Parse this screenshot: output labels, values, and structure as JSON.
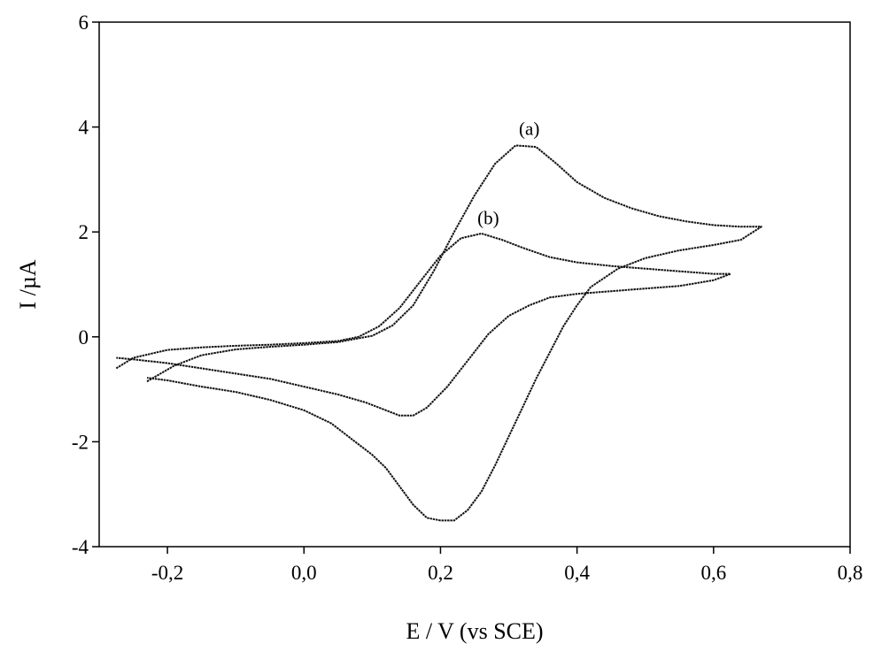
{
  "chart_data": {
    "type": "line",
    "title": "",
    "xlabel": "E / V (vs SCE)",
    "ylabel": "I /µA",
    "xlim": [
      -0.3,
      0.8
    ],
    "ylim": [
      -4,
      6
    ],
    "x_ticks": [
      "-0,2",
      "0,0",
      "0,2",
      "0,4",
      "0,6",
      "0,8"
    ],
    "y_ticks": [
      "-4",
      "-2",
      "0",
      "2",
      "4",
      "6"
    ],
    "x_tick_values": [
      -0.2,
      0.0,
      0.2,
      0.4,
      0.6,
      0.8
    ],
    "y_tick_values": [
      -4,
      -2,
      0,
      2,
      4,
      6
    ],
    "grid": false,
    "legend": "none",
    "series_color": "#111111",
    "series": [
      {
        "name": "(a)",
        "label_at": [
          0.33,
          3.85
        ],
        "x": [
          -0.23,
          -0.19,
          -0.15,
          -0.1,
          -0.05,
          0.0,
          0.05,
          0.1,
          0.13,
          0.16,
          0.19,
          0.22,
          0.25,
          0.28,
          0.31,
          0.34,
          0.37,
          0.4,
          0.44,
          0.48,
          0.52,
          0.56,
          0.6,
          0.64,
          0.67,
          0.64,
          0.6,
          0.55,
          0.5,
          0.46,
          0.42,
          0.4,
          0.38,
          0.36,
          0.34,
          0.32,
          0.3,
          0.28,
          0.26,
          0.24,
          0.22,
          0.2,
          0.18,
          0.16,
          0.14,
          0.12,
          0.1,
          0.07,
          0.04,
          0.0,
          -0.05,
          -0.1,
          -0.15,
          -0.2,
          -0.23
        ],
        "y": [
          -0.85,
          -0.55,
          -0.35,
          -0.24,
          -0.19,
          -0.15,
          -0.1,
          0.02,
          0.22,
          0.6,
          1.25,
          2.0,
          2.7,
          3.3,
          3.65,
          3.62,
          3.3,
          2.95,
          2.65,
          2.45,
          2.3,
          2.2,
          2.13,
          2.1,
          2.1,
          1.85,
          1.75,
          1.65,
          1.5,
          1.3,
          0.95,
          0.6,
          0.2,
          -0.3,
          -0.8,
          -1.35,
          -1.9,
          -2.45,
          -2.95,
          -3.3,
          -3.5,
          -3.5,
          -3.45,
          -3.2,
          -2.85,
          -2.5,
          -2.25,
          -1.95,
          -1.65,
          -1.4,
          -1.2,
          -1.05,
          -0.95,
          -0.83,
          -0.78
        ]
      },
      {
        "name": "(b)",
        "label_at": [
          0.27,
          2.15
        ],
        "x": [
          -0.275,
          -0.25,
          -0.2,
          -0.15,
          -0.1,
          -0.05,
          0.0,
          0.05,
          0.08,
          0.11,
          0.14,
          0.17,
          0.2,
          0.23,
          0.26,
          0.29,
          0.32,
          0.36,
          0.4,
          0.45,
          0.5,
          0.55,
          0.6,
          0.625,
          0.6,
          0.55,
          0.5,
          0.45,
          0.4,
          0.36,
          0.33,
          0.3,
          0.27,
          0.24,
          0.21,
          0.18,
          0.16,
          0.14,
          0.12,
          0.09,
          0.05,
          0.0,
          -0.05,
          -0.1,
          -0.15,
          -0.2,
          -0.25,
          -0.275
        ],
        "y": [
          -0.6,
          -0.4,
          -0.25,
          -0.2,
          -0.17,
          -0.15,
          -0.12,
          -0.08,
          0.0,
          0.2,
          0.55,
          1.05,
          1.55,
          1.88,
          1.97,
          1.85,
          1.7,
          1.52,
          1.42,
          1.35,
          1.3,
          1.25,
          1.2,
          1.2,
          1.08,
          0.97,
          0.92,
          0.87,
          0.82,
          0.75,
          0.6,
          0.4,
          0.05,
          -0.45,
          -0.95,
          -1.35,
          -1.5,
          -1.5,
          -1.4,
          -1.25,
          -1.1,
          -0.95,
          -0.8,
          -0.7,
          -0.6,
          -0.5,
          -0.43,
          -0.4
        ]
      }
    ]
  }
}
